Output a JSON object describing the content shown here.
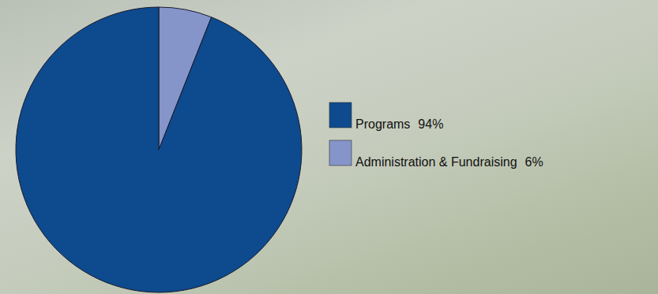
{
  "chart_data": {
    "type": "pie",
    "categories": [
      "Programs",
      "Administration & Fundraising"
    ],
    "values": [
      94,
      6
    ],
    "value_labels": [
      "94%",
      "6%"
    ],
    "colors": [
      "#0d4a8e",
      "#8595c9"
    ],
    "legend": "right"
  }
}
